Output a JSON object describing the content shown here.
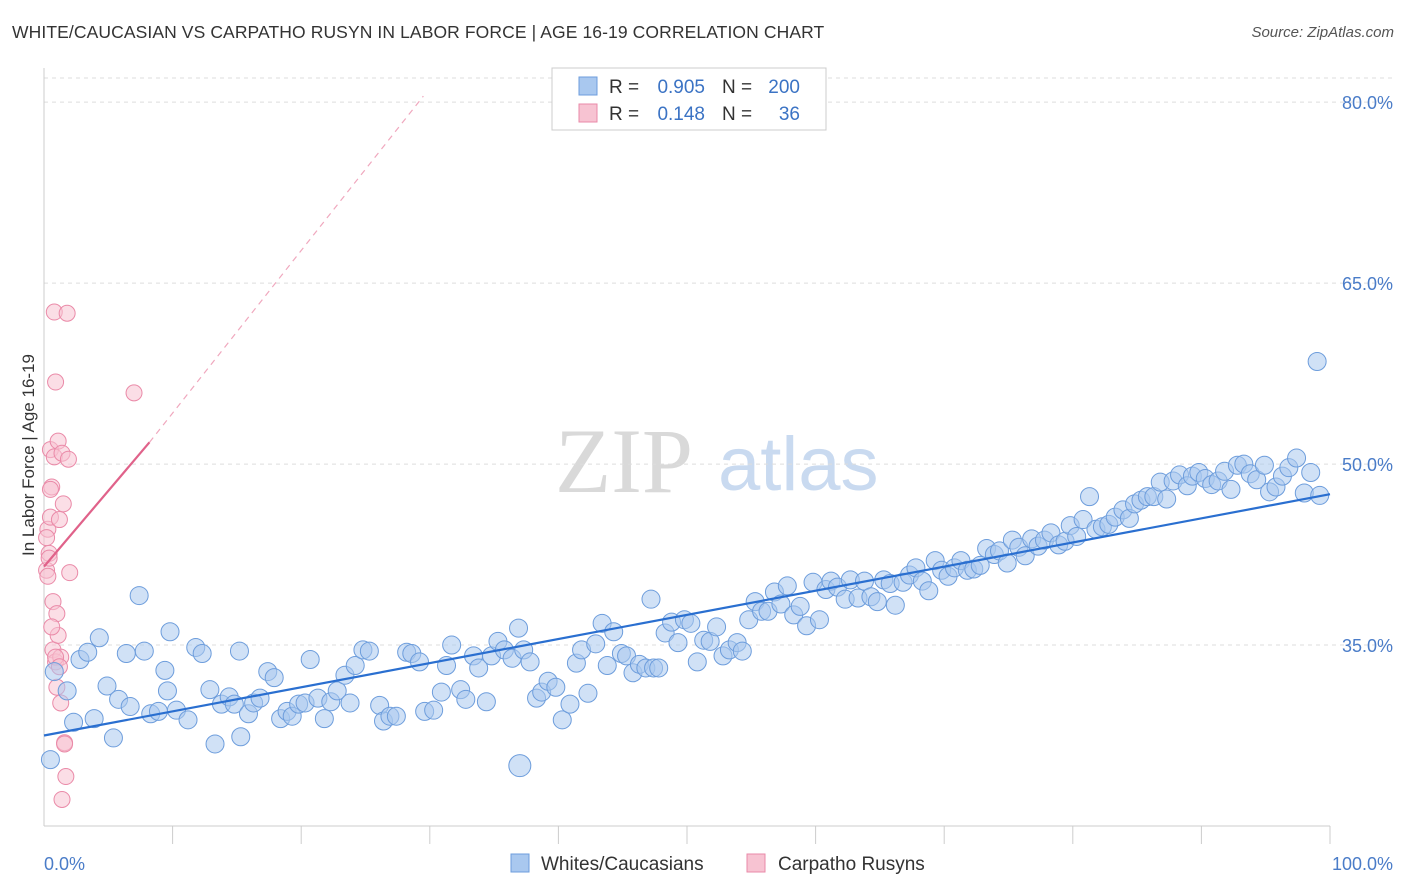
{
  "title": "WHITE/CAUCASIAN VS CARPATHO RUSYN IN LABOR FORCE | AGE 16-19 CORRELATION CHART",
  "source": "Source: ZipAtlas.com",
  "watermark": {
    "zip": "ZIP",
    "atlas": "atlas"
  },
  "legend": {
    "rows": [
      {
        "r_label": "R =",
        "r_value": "0.905",
        "n_label": "N =",
        "n_value": "200",
        "color": "#9cc0ec"
      },
      {
        "r_label": "R =",
        "r_value": "0.148",
        "n_label": "N =",
        "n_value": "36",
        "color": "#f5b7c9"
      }
    ]
  },
  "bottom_legend": [
    {
      "label": "Whites/Caucasians",
      "color": "#9cc0ec"
    },
    {
      "label": "Carpatho Rusyns",
      "color": "#f5b7c9"
    }
  ],
  "colors": {
    "blue_fill": "#a9c8ef",
    "blue_stroke": "#6d9ddc",
    "blue_line": "#2a6fd0",
    "pink_fill": "#f7c3d2",
    "pink_stroke": "#ea8aa8",
    "pink_line": "#e0628a",
    "grid": "#dddddd"
  },
  "chart_data": {
    "type": "scatter",
    "title": "WHITE/CAUCASIAN VS CARPATHO RUSYN IN LABOR FORCE | AGE 16-19 CORRELATION CHART",
    "xlabel": "",
    "ylabel": "In Labor Force | Age 16-19",
    "xlim": [
      0,
      100
    ],
    "ylim": [
      20,
      82
    ],
    "x_tick_labels": [
      "0.0%",
      "100.0%"
    ],
    "y_ticks": [
      35,
      50,
      65,
      80
    ],
    "y_tick_labels": [
      "35.0%",
      "50.0%",
      "65.0%",
      "80.0%"
    ],
    "grid": true,
    "legend_position": "top-center",
    "series": [
      {
        "name": "Whites/Caucasians",
        "R": 0.905,
        "N": 200,
        "trend": {
          "x": [
            0,
            100
          ],
          "y": [
            27.5,
            47.5
          ]
        },
        "points": [
          [
            0.5,
            25.5
          ],
          [
            0.8,
            32.8
          ],
          [
            1.8,
            31.2
          ],
          [
            2.3,
            28.6
          ],
          [
            2.8,
            33.8
          ],
          [
            3.4,
            34.4
          ],
          [
            3.9,
            28.9
          ],
          [
            4.3,
            35.6
          ],
          [
            4.9,
            31.6
          ],
          [
            5.4,
            27.3
          ],
          [
            5.8,
            30.5
          ],
          [
            6.4,
            34.3
          ],
          [
            6.7,
            29.9
          ],
          [
            7.4,
            39.1
          ],
          [
            7.8,
            34.5
          ],
          [
            8.3,
            29.3
          ],
          [
            8.9,
            29.5
          ],
          [
            9.4,
            32.9
          ],
          [
            9.8,
            36.1
          ],
          [
            10.3,
            29.6
          ],
          [
            11.2,
            28.8
          ],
          [
            11.8,
            34.8
          ],
          [
            12.3,
            34.3
          ],
          [
            12.9,
            31.3
          ],
          [
            13.3,
            26.8
          ],
          [
            13.8,
            30.1
          ],
          [
            14.4,
            30.7
          ],
          [
            14.8,
            30.1
          ],
          [
            15.3,
            27.4
          ],
          [
            15.9,
            29.3
          ],
          [
            16.3,
            30.2
          ],
          [
            16.8,
            30.6
          ],
          [
            17.4,
            32.8
          ],
          [
            17.9,
            32.3
          ],
          [
            18.4,
            28.9
          ],
          [
            18.9,
            29.5
          ],
          [
            19.3,
            29.1
          ],
          [
            19.8,
            30.1
          ],
          [
            20.3,
            30.2
          ],
          [
            20.7,
            33.8
          ],
          [
            21.3,
            30.6
          ],
          [
            21.8,
            28.9
          ],
          [
            22.3,
            30.3
          ],
          [
            22.8,
            31.2
          ],
          [
            23.4,
            32.5
          ],
          [
            23.8,
            30.2
          ],
          [
            24.2,
            33.3
          ],
          [
            24.8,
            34.6
          ],
          [
            25.3,
            34.5
          ],
          [
            26.1,
            30.0
          ],
          [
            26.4,
            28.7
          ],
          [
            26.9,
            29.1
          ],
          [
            27.4,
            29.1
          ],
          [
            28.2,
            34.4
          ],
          [
            28.6,
            34.3
          ],
          [
            29.2,
            33.6
          ],
          [
            29.6,
            29.5
          ],
          [
            30.3,
            29.6
          ],
          [
            30.9,
            31.1
          ],
          [
            31.3,
            33.3
          ],
          [
            31.7,
            35.0
          ],
          [
            32.4,
            31.3
          ],
          [
            32.8,
            30.5
          ],
          [
            33.4,
            34.1
          ],
          [
            33.8,
            33.1
          ],
          [
            34.4,
            30.3
          ],
          [
            34.8,
            34.1
          ],
          [
            35.3,
            35.3
          ],
          [
            35.8,
            34.6
          ],
          [
            36.4,
            33.9
          ],
          [
            36.9,
            36.4
          ],
          [
            37.3,
            34.6
          ],
          [
            37.8,
            33.6
          ],
          [
            38.3,
            30.6
          ],
          [
            38.7,
            31.1
          ],
          [
            39.2,
            32.0
          ],
          [
            39.8,
            31.5
          ],
          [
            40.3,
            28.8
          ],
          [
            40.9,
            30.1
          ],
          [
            41.4,
            33.5
          ],
          [
            41.8,
            34.6
          ],
          [
            42.3,
            31.0
          ],
          [
            42.9,
            35.1
          ],
          [
            43.4,
            36.8
          ],
          [
            43.8,
            33.3
          ],
          [
            44.3,
            36.1
          ],
          [
            44.9,
            34.3
          ],
          [
            45.3,
            34.1
          ],
          [
            45.8,
            32.7
          ],
          [
            46.3,
            33.4
          ],
          [
            46.8,
            33.1
          ],
          [
            47.4,
            33.1
          ],
          [
            47.8,
            33.1
          ],
          [
            48.3,
            36.0
          ],
          [
            48.8,
            36.9
          ],
          [
            49.3,
            35.2
          ],
          [
            49.8,
            37.1
          ],
          [
            50.3,
            36.8
          ],
          [
            50.8,
            33.6
          ],
          [
            51.3,
            35.4
          ],
          [
            51.8,
            35.3
          ],
          [
            52.3,
            36.5
          ],
          [
            52.8,
            34.1
          ],
          [
            53.3,
            34.6
          ],
          [
            53.9,
            35.2
          ],
          [
            54.3,
            34.5
          ],
          [
            54.8,
            37.1
          ],
          [
            55.3,
            38.6
          ],
          [
            55.8,
            37.8
          ],
          [
            56.3,
            37.8
          ],
          [
            56.8,
            39.4
          ],
          [
            57.3,
            38.4
          ],
          [
            57.8,
            39.9
          ],
          [
            58.3,
            37.5
          ],
          [
            58.8,
            38.2
          ],
          [
            59.3,
            36.6
          ],
          [
            59.8,
            40.2
          ],
          [
            60.3,
            37.1
          ],
          [
            60.8,
            39.6
          ],
          [
            61.2,
            40.3
          ],
          [
            61.7,
            39.8
          ],
          [
            62.3,
            38.8
          ],
          [
            62.7,
            40.4
          ],
          [
            63.3,
            38.9
          ],
          [
            63.8,
            40.3
          ],
          [
            64.3,
            39.0
          ],
          [
            64.8,
            38.6
          ],
          [
            65.3,
            40.4
          ],
          [
            65.8,
            40.1
          ],
          [
            66.2,
            38.3
          ],
          [
            66.8,
            40.2
          ],
          [
            67.3,
            40.8
          ],
          [
            67.8,
            41.4
          ],
          [
            68.3,
            40.3
          ],
          [
            68.8,
            39.5
          ],
          [
            69.3,
            42.0
          ],
          [
            69.8,
            41.2
          ],
          [
            70.3,
            40.7
          ],
          [
            70.8,
            41.4
          ],
          [
            71.3,
            42.0
          ],
          [
            71.8,
            41.2
          ],
          [
            72.3,
            41.3
          ],
          [
            72.8,
            41.6
          ],
          [
            73.3,
            43.0
          ],
          [
            73.9,
            42.5
          ],
          [
            74.3,
            42.8
          ],
          [
            74.9,
            41.8
          ],
          [
            75.3,
            43.7
          ],
          [
            75.8,
            43.1
          ],
          [
            76.3,
            42.4
          ],
          [
            76.8,
            43.8
          ],
          [
            77.3,
            43.2
          ],
          [
            77.8,
            43.7
          ],
          [
            78.3,
            44.3
          ],
          [
            78.9,
            43.3
          ],
          [
            79.4,
            43.6
          ],
          [
            79.8,
            44.9
          ],
          [
            80.3,
            44.0
          ],
          [
            80.8,
            45.4
          ],
          [
            81.3,
            47.3
          ],
          [
            81.8,
            44.6
          ],
          [
            82.3,
            44.8
          ],
          [
            82.8,
            45.0
          ],
          [
            83.3,
            45.6
          ],
          [
            83.9,
            46.2
          ],
          [
            84.4,
            45.5
          ],
          [
            84.8,
            46.7
          ],
          [
            85.3,
            47.0
          ],
          [
            85.8,
            47.3
          ],
          [
            86.3,
            47.3
          ],
          [
            86.8,
            48.5
          ],
          [
            87.3,
            47.1
          ],
          [
            87.8,
            48.6
          ],
          [
            88.3,
            49.1
          ],
          [
            88.9,
            48.2
          ],
          [
            89.3,
            49.0
          ],
          [
            89.8,
            49.3
          ],
          [
            90.3,
            48.8
          ],
          [
            90.8,
            48.3
          ],
          [
            91.3,
            48.6
          ],
          [
            91.8,
            49.4
          ],
          [
            92.3,
            47.9
          ],
          [
            92.8,
            49.9
          ],
          [
            93.3,
            50.0
          ],
          [
            93.8,
            49.2
          ],
          [
            94.3,
            48.7
          ],
          [
            94.9,
            49.9
          ],
          [
            95.3,
            47.7
          ],
          [
            95.8,
            48.1
          ],
          [
            96.3,
            49.0
          ],
          [
            96.8,
            49.7
          ],
          [
            97.4,
            50.5
          ],
          [
            98.0,
            47.6
          ],
          [
            98.5,
            49.3
          ],
          [
            99.0,
            58.5
          ],
          [
            99.2,
            47.4
          ],
          [
            9.6,
            31.2
          ],
          [
            15.2,
            34.5
          ],
          [
            47.2,
            38.8
          ],
          [
            37.0,
            25.0
          ]
        ]
      },
      {
        "name": "Carpatho Rusyns",
        "R": 0.148,
        "N": 36,
        "trend": {
          "x": [
            0,
            8.2
          ],
          "y": [
            41.5,
            51.8
          ]
        },
        "trend_extended": {
          "x": [
            8.2,
            29.5
          ],
          "y": [
            51.8,
            80.5
          ]
        },
        "points": [
          [
            0.2,
            41.2
          ],
          [
            0.3,
            44.6
          ],
          [
            0.4,
            42.6
          ],
          [
            0.5,
            45.6
          ],
          [
            0.5,
            51.2
          ],
          [
            0.6,
            48.1
          ],
          [
            0.7,
            38.6
          ],
          [
            0.7,
            34.6
          ],
          [
            0.8,
            62.6
          ],
          [
            0.8,
            50.6
          ],
          [
            0.9,
            56.8
          ],
          [
            0.9,
            33.6
          ],
          [
            1.0,
            37.6
          ],
          [
            1.0,
            31.5
          ],
          [
            1.1,
            51.9
          ],
          [
            1.1,
            35.8
          ],
          [
            1.2,
            45.4
          ],
          [
            1.3,
            34.0
          ],
          [
            1.3,
            30.2
          ],
          [
            1.4,
            50.9
          ],
          [
            1.5,
            46.7
          ],
          [
            1.6,
            26.9
          ],
          [
            1.7,
            24.1
          ],
          [
            1.8,
            62.5
          ],
          [
            1.9,
            50.4
          ],
          [
            2.0,
            41.0
          ],
          [
            0.2,
            43.9
          ],
          [
            0.3,
            40.7
          ],
          [
            0.4,
            42.2
          ],
          [
            0.6,
            36.5
          ],
          [
            0.9,
            34.0
          ],
          [
            1.2,
            33.2
          ],
          [
            1.4,
            22.2
          ],
          [
            1.6,
            26.8
          ],
          [
            7.0,
            55.9
          ],
          [
            0.5,
            47.9
          ]
        ]
      }
    ]
  }
}
